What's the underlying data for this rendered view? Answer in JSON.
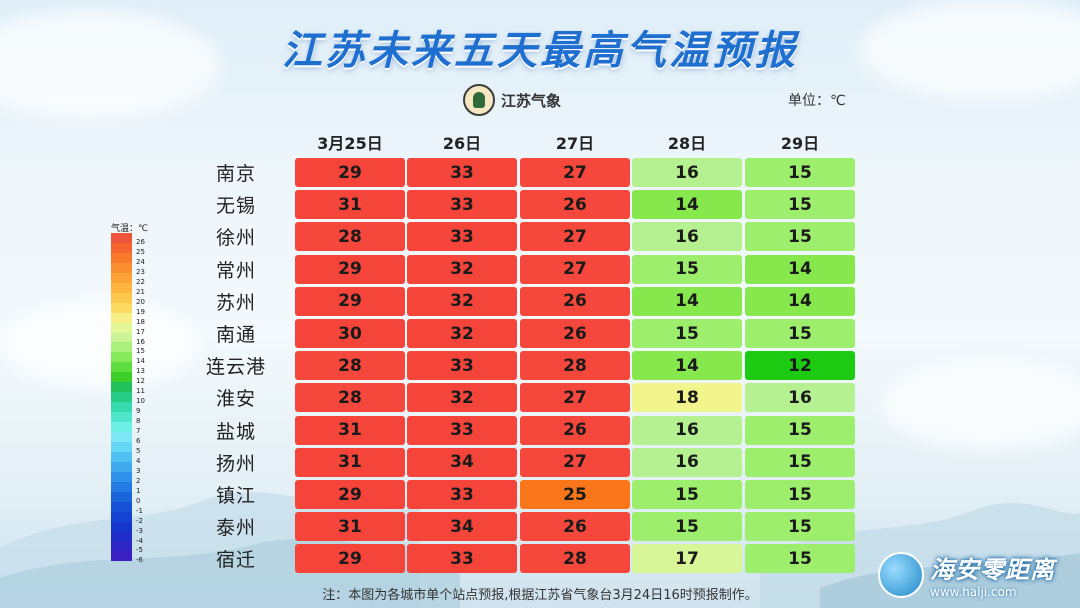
{
  "title": "江苏未来五天最高气温预报",
  "logo_text": "江苏气象",
  "unit_label": "单位：℃",
  "note": "注：本图为各城市单个站点预报,根据江苏省气象台3月24日16时预报制作。",
  "watermark": {
    "name": "海安零距离",
    "url": "www.halji.com"
  },
  "legend": {
    "title": "气温：℃",
    "items": [
      {
        "label": "26",
        "color": "#f0533c"
      },
      {
        "label": "25",
        "color": "#f5652d"
      },
      {
        "label": "24",
        "color": "#f77a2a"
      },
      {
        "label": "23",
        "color": "#f98f2e"
      },
      {
        "label": "22",
        "color": "#fba336"
      },
      {
        "label": "21",
        "color": "#fdb63e"
      },
      {
        "label": "20",
        "color": "#fdc94c"
      },
      {
        "label": "19",
        "color": "#fddb63"
      },
      {
        "label": "18",
        "color": "#f8ef86"
      },
      {
        "label": "17",
        "color": "#e4f796"
      },
      {
        "label": "16",
        "color": "#c9f596"
      },
      {
        "label": "15",
        "color": "#aaf07d"
      },
      {
        "label": "14",
        "color": "#86ea5d"
      },
      {
        "label": "13",
        "color": "#5fdc3e"
      },
      {
        "label": "12",
        "color": "#3ccf2c"
      },
      {
        "label": "11",
        "color": "#22c05a"
      },
      {
        "label": "10",
        "color": "#26cc85"
      },
      {
        "label": "9",
        "color": "#36dcae"
      },
      {
        "label": "8",
        "color": "#50e6cc"
      },
      {
        "label": "7",
        "color": "#6ef0e6"
      },
      {
        "label": "6",
        "color": "#7fe8f6"
      },
      {
        "label": "5",
        "color": "#66d6f6"
      },
      {
        "label": "4",
        "color": "#4fc0f2"
      },
      {
        "label": "3",
        "color": "#3ea9ee"
      },
      {
        "label": "2",
        "color": "#2f92ea"
      },
      {
        "label": "1",
        "color": "#247be4"
      },
      {
        "label": "0",
        "color": "#1c66dc"
      },
      {
        "label": "-1",
        "color": "#1752d6"
      },
      {
        "label": "-2",
        "color": "#1442d2"
      },
      {
        "label": "-3",
        "color": "#1636cc"
      },
      {
        "label": "-4",
        "color": "#202cc8"
      },
      {
        "label": "-5",
        "color": "#2c26c4"
      },
      {
        "label": "-6",
        "color": "#3a20c0"
      }
    ]
  },
  "cell_colors": {
    "29": "#f5453a",
    "30": "#f5453a",
    "31": "#f5453a",
    "32": "#f5453a",
    "33": "#f5453a",
    "34": "#f5453a",
    "28": "#f5473b",
    "27": "#f5473b",
    "26": "#f5473b",
    "25": "#f9761a",
    "18": "#f2f58c",
    "17": "#d8f697",
    "16": "#b6f191",
    "15": "#9cee6c",
    "14": "#86e84c",
    "12": "#1ccb11"
  },
  "chart_data": {
    "type": "table",
    "title": "江苏未来五天最高气温预报",
    "unit": "单位：℃",
    "columns": [
      "3月25日",
      "26日",
      "27日",
      "28日",
      "29日"
    ],
    "rows": [
      {
        "city": "南京",
        "values": [
          29,
          33,
          27,
          16,
          15
        ]
      },
      {
        "city": "无锡",
        "values": [
          31,
          33,
          26,
          14,
          15
        ]
      },
      {
        "city": "徐州",
        "values": [
          28,
          33,
          27,
          16,
          15
        ]
      },
      {
        "city": "常州",
        "values": [
          29,
          32,
          27,
          15,
          14
        ]
      },
      {
        "city": "苏州",
        "values": [
          29,
          32,
          26,
          14,
          14
        ]
      },
      {
        "city": "南通",
        "values": [
          30,
          32,
          26,
          15,
          15
        ]
      },
      {
        "city": "连云港",
        "values": [
          28,
          33,
          28,
          14,
          12
        ]
      },
      {
        "city": "淮安",
        "values": [
          28,
          32,
          27,
          18,
          16
        ]
      },
      {
        "city": "盐城",
        "values": [
          31,
          33,
          26,
          16,
          15
        ]
      },
      {
        "city": "扬州",
        "values": [
          31,
          34,
          27,
          16,
          15
        ]
      },
      {
        "city": "镇江",
        "values": [
          29,
          33,
          25,
          15,
          15
        ]
      },
      {
        "city": "泰州",
        "values": [
          31,
          34,
          26,
          15,
          15
        ]
      },
      {
        "city": "宿迁",
        "values": [
          29,
          33,
          28,
          17,
          15
        ]
      }
    ]
  }
}
